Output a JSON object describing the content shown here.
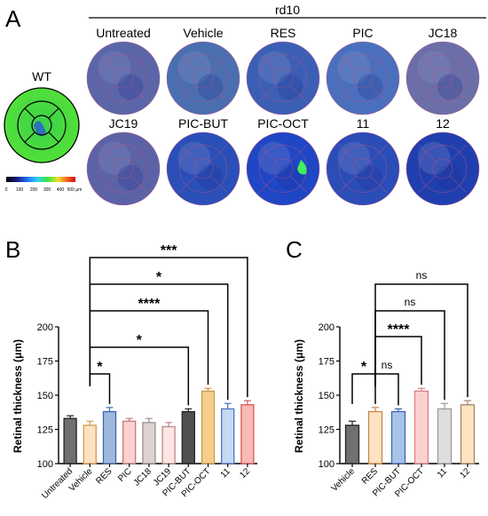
{
  "panel_a": {
    "letter": "A",
    "group_title": "rd10",
    "wt_label": "WT",
    "colorbar_ticks": [
      "0",
      "100",
      "200",
      "300",
      "400",
      "500 μm"
    ],
    "maps": [
      {
        "label": "Untreated",
        "tone": "#5a66a8"
      },
      {
        "label": "Vehicle",
        "tone": "#4a6fb0"
      },
      {
        "label": "RES",
        "tone": "#3b5fb5"
      },
      {
        "label": "PIC",
        "tone": "#4a70bd"
      },
      {
        "label": "JC18",
        "tone": "#6a6fa8"
      },
      {
        "label": "JC19",
        "tone": "#5b63a6"
      },
      {
        "label": "PIC-BUT",
        "tone": "#2a4fb8"
      },
      {
        "label": "PIC-OCT",
        "tone": "#1f46c4"
      },
      {
        "label": "11",
        "tone": "#2b4db8"
      },
      {
        "label": "12",
        "tone": "#203fae"
      }
    ]
  },
  "chart_data": [
    {
      "panel": "B",
      "type": "bar",
      "ylabel": "Retinal thickness (μm)",
      "ylim": [
        100,
        200
      ],
      "yticks": [
        100,
        125,
        150,
        175,
        200
      ],
      "categories": [
        "Untreated",
        "Vehicle",
        "RES",
        "PIC",
        "JC18",
        "JC19",
        "PIC-BUT",
        "PIC-OCT",
        "11",
        "12"
      ],
      "values": [
        133,
        128,
        138,
        131,
        130,
        127,
        138,
        153,
        140,
        143
      ],
      "errors": [
        2,
        3,
        3,
        2,
        3,
        3,
        2,
        2,
        4,
        3
      ],
      "colors": [
        "#707070",
        "#fde3c1",
        "#9fb9dd",
        "#fbd1d0",
        "#dcd3d0",
        "#fde6e3",
        "#505050",
        "#f5ce8a",
        "#c6d9f2",
        "#f9b9b4"
      ],
      "edge_colors": [
        "#222222",
        "#d59a55",
        "#3a66b2",
        "#c67878",
        "#9a8f8d",
        "#b58a85",
        "#222222",
        "#c9994d",
        "#4a72c0",
        "#d65555"
      ],
      "comparisons": [
        {
          "from": "Vehicle",
          "to": "RES",
          "label": "*"
        },
        {
          "from": "Vehicle",
          "to": "PIC-BUT",
          "label": "*"
        },
        {
          "from": "Vehicle",
          "to": "PIC-OCT",
          "label": "****"
        },
        {
          "from": "Vehicle",
          "to": "11",
          "label": "*"
        },
        {
          "from": "Vehicle",
          "to": "12",
          "label": "***"
        }
      ]
    },
    {
      "panel": "C",
      "type": "bar",
      "ylabel": "Retinal thickness (μm)",
      "ylim": [
        100,
        200
      ],
      "yticks": [
        100,
        125,
        150,
        175,
        200
      ],
      "categories": [
        "Vehicle",
        "RES",
        "PIC-BUT",
        "PIC-OCT",
        "11",
        "12"
      ],
      "values": [
        128,
        138,
        138,
        153,
        140,
        143
      ],
      "errors": [
        3,
        3,
        2,
        2,
        4,
        3
      ],
      "colors": [
        "#707070",
        "#fde3c1",
        "#a8c3e8",
        "#fbd1d0",
        "#dedede",
        "#fde3c1"
      ],
      "edge_colors": [
        "#222222",
        "#c8874a",
        "#3a66b2",
        "#d88080",
        "#9a9a9a",
        "#a2866a"
      ],
      "comparisons": [
        {
          "from": "Vehicle",
          "to": "RES",
          "label": "*"
        },
        {
          "from": "RES",
          "to": "PIC-BUT",
          "label": "ns"
        },
        {
          "from": "RES",
          "to": "PIC-OCT",
          "label": "****"
        },
        {
          "from": "RES",
          "to": "11",
          "label": "ns"
        },
        {
          "from": "RES",
          "to": "12",
          "label": "ns"
        }
      ]
    }
  ]
}
